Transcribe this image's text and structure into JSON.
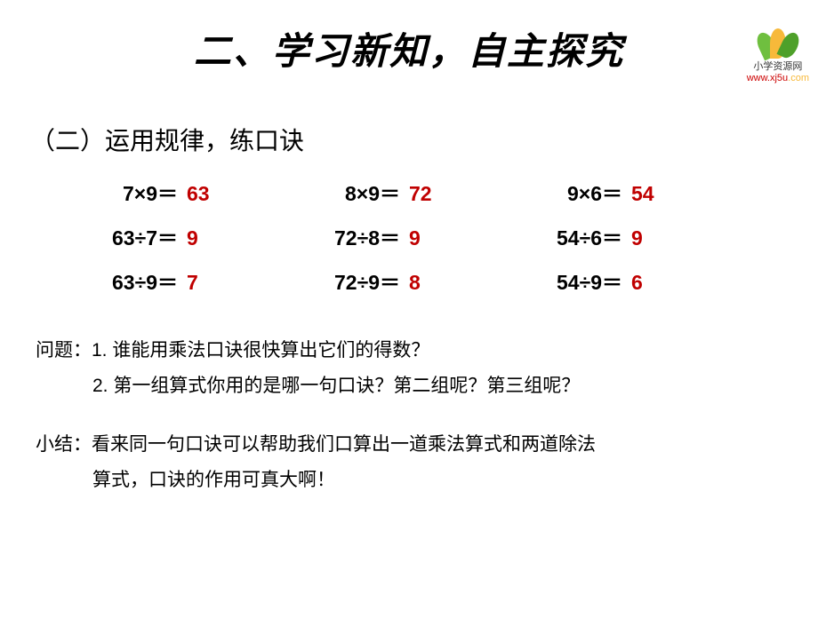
{
  "logo": {
    "line1": "小学资源网",
    "line2_www": "www.",
    "line2_mid": "xj5u",
    "line2_com": ".com"
  },
  "title": "二、学习新知，自主探究",
  "subtitle": "（二）运用规律，练口诀",
  "equations": {
    "rows": [
      [
        {
          "expr": "7×9＝",
          "ans": "63"
        },
        {
          "expr": "8×9＝",
          "ans": "72"
        },
        {
          "expr": "9×6＝",
          "ans": "54"
        }
      ],
      [
        {
          "expr": "63÷7＝",
          "ans": "9"
        },
        {
          "expr": "72÷8＝",
          "ans": "9"
        },
        {
          "expr": "54÷6＝",
          "ans": "9"
        }
      ],
      [
        {
          "expr": "63÷9＝",
          "ans": "7"
        },
        {
          "expr": "72÷9＝",
          "ans": "8"
        },
        {
          "expr": "54÷9＝",
          "ans": "6"
        }
      ]
    ],
    "expr_color": "#000000",
    "ans_color": "#c00000",
    "font_size": 23
  },
  "questions": {
    "label": "问题：",
    "q1": "1. 谁能用乘法口诀很快算出它们的得数？",
    "q2": "2. 第一组算式你用的是哪一句口诀？第二组呢？第三组呢？"
  },
  "summary": {
    "label": "小结：",
    "line1": "看来同一句口诀可以帮助我们口算出一道乘法算式和两道除法",
    "line2": "算式，口诀的作用可真大啊！"
  },
  "colors": {
    "background": "#ffffff",
    "title": "#000000",
    "answer": "#c00000",
    "text": "#000000"
  }
}
